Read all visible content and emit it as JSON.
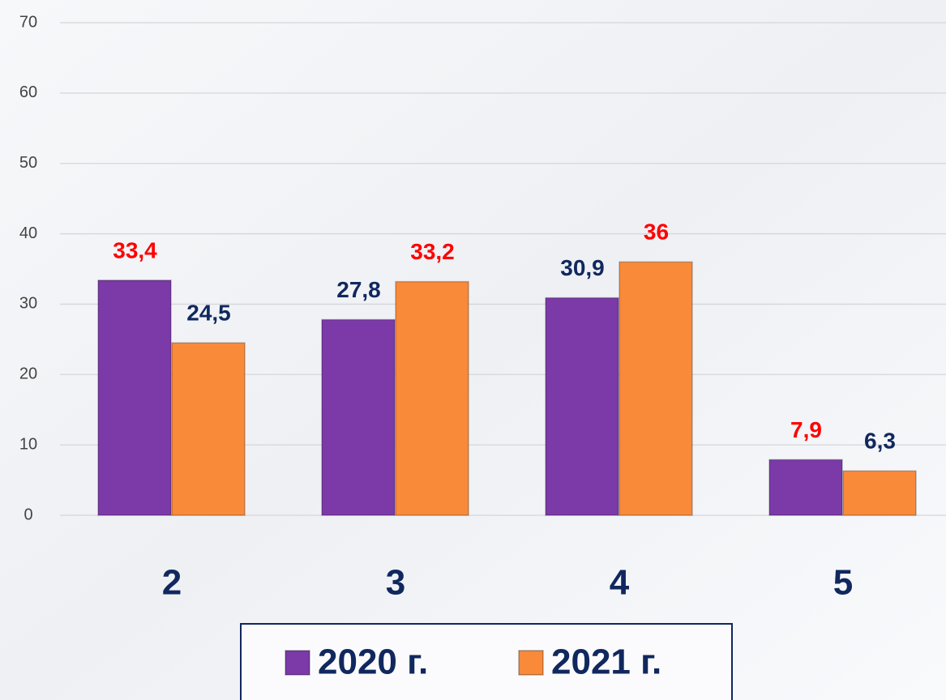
{
  "chart_data": {
    "type": "bar",
    "categories": [
      "2",
      "3",
      "4",
      "5"
    ],
    "series": [
      {
        "name": "2020 г.",
        "color": "#7b3aa8",
        "values": [
          33.4,
          27.8,
          30.9,
          7.9
        ],
        "value_labels": [
          "33,4",
          "27,8",
          "30,9",
          "7,9"
        ],
        "label_colors": [
          "#ff0000",
          "#10285e",
          "#10285e",
          "#ff0000"
        ]
      },
      {
        "name": "2021 г.",
        "color": "#f98a3a",
        "values": [
          24.5,
          33.2,
          36,
          6.3
        ],
        "value_labels": [
          "24,5",
          "33,2",
          "36",
          "6,3"
        ],
        "label_colors": [
          "#10285e",
          "#ff0000",
          "#ff0000",
          "#10285e"
        ]
      }
    ],
    "ylim": [
      0,
      70
    ],
    "yticks": [
      0,
      10,
      20,
      30,
      40,
      50,
      60,
      70
    ],
    "grid": true,
    "legend": "bottom"
  }
}
